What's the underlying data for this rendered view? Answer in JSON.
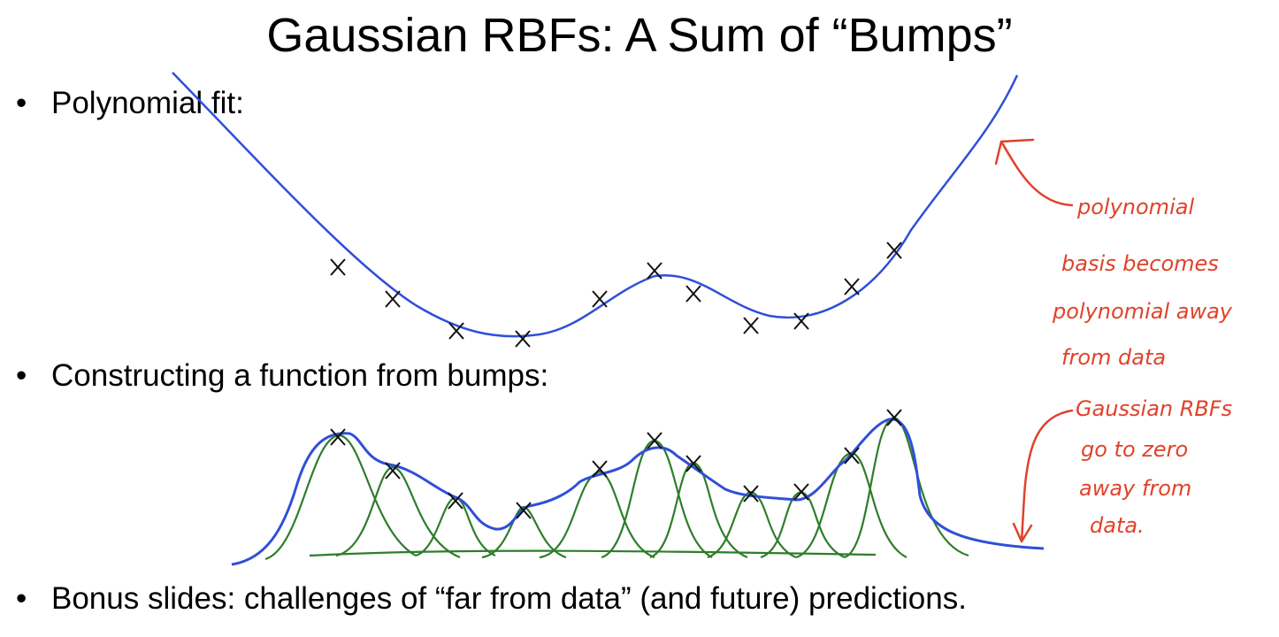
{
  "slide": {
    "title": "Gaussian RBFs: A Sum of “Bumps”",
    "bullets": [
      "Polynomial fit:",
      "Constructing a function from bumps:",
      "Bonus slides: challenges of “far from data” (and future) predictions."
    ],
    "bullet_symbol": "•"
  },
  "annotations": {
    "polynomial_note": [
      "polynomial",
      "basis becomes",
      "polynomial away",
      "from data"
    ],
    "rbf_note": [
      "Gaussian RBFs",
      "go to zero",
      "away from",
      "data."
    ]
  },
  "colors": {
    "fit_curve": "#2f4fd8",
    "bumps": "#2e7d2a",
    "annotation": "#e0422a",
    "data_marks": "#111111"
  }
}
